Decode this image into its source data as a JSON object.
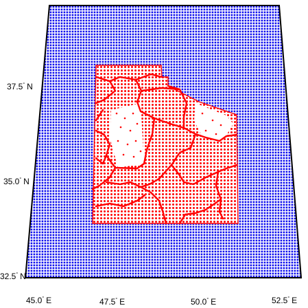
{
  "map": {
    "projection_frame": "conic",
    "colors": {
      "background": "#ffffff",
      "outer_grid_points": "#0000ff",
      "inner_grid_points": "#ff0000",
      "boundary_lines": "#ff0000",
      "frame": "#000000"
    },
    "lat_labels": [
      {
        "value": 37.5,
        "text": "37.5",
        "hemisphere": "N"
      },
      {
        "value": 35.0,
        "text": "35.0",
        "hemisphere": "N"
      },
      {
        "value": 32.5,
        "text": "32.5",
        "hemisphere": "N"
      }
    ],
    "lon_labels": [
      {
        "value": 45.0,
        "text": "45.0",
        "hemisphere": "E"
      },
      {
        "value": 47.5,
        "text": "47.5",
        "hemisphere": "E"
      },
      {
        "value": 50.0,
        "text": "50.0",
        "hemisphere": "E"
      },
      {
        "value": 52.5,
        "text": "52.5",
        "hemisphere": "E"
      }
    ],
    "degree_symbol": "°"
  }
}
